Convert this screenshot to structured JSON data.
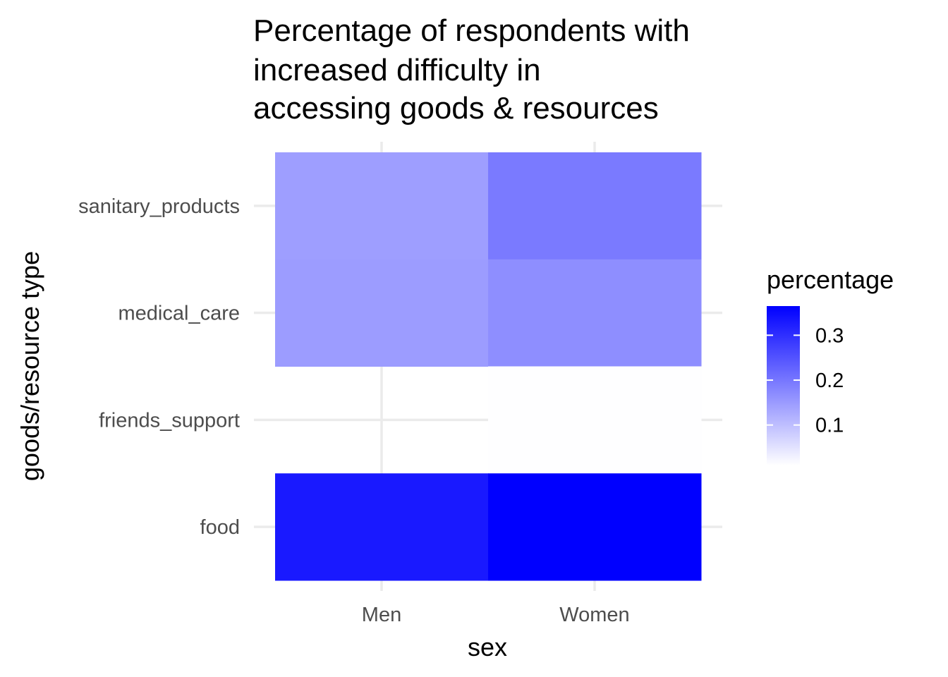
{
  "chart_data": {
    "type": "heatmap",
    "title_lines": [
      "Percentage of respondents with",
      "increased difficulty in",
      "accessing goods & resources"
    ],
    "xlabel": "sex",
    "ylabel": "goods/resource type",
    "x_categories": [
      "Men",
      "Women"
    ],
    "y_categories": [
      "sanitary_products",
      "medical_care",
      "friends_support",
      "food"
    ],
    "cells": [
      {
        "x": "Men",
        "y": "sanitary_products",
        "value": 0.145
      },
      {
        "x": "Women",
        "y": "sanitary_products",
        "value": 0.195
      },
      {
        "x": "Men",
        "y": "medical_care",
        "value": 0.148
      },
      {
        "x": "Women",
        "y": "medical_care",
        "value": 0.168
      },
      {
        "x": "Men",
        "y": "friends_support",
        "value": null
      },
      {
        "x": "Women",
        "y": "friends_support",
        "value": 0.011
      },
      {
        "x": "Men",
        "y": "food",
        "value": 0.33
      },
      {
        "x": "Women",
        "y": "food",
        "value": 0.365
      }
    ],
    "legend": {
      "title": "percentage",
      "ticks": [
        0.1,
        0.2,
        0.3
      ],
      "tick_labels": [
        "0.1",
        "0.2",
        "0.3"
      ],
      "range": [
        0.01,
        0.365
      ],
      "low_color": "#ffffff",
      "high_color": "#0000ff",
      "placement": "right"
    },
    "grid": true
  }
}
